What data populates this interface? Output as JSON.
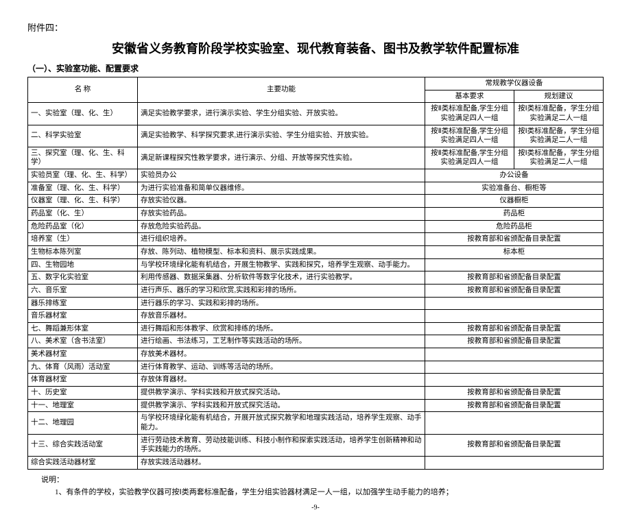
{
  "attachment_label": "附件四：",
  "main_title": "安徽省义务教育阶段学校实验室、现代教育装备、图书及教学软件配置标准",
  "subsection_label": "（一）、实验室功能、配置要求",
  "header": {
    "name": "名    称",
    "function": "主要功能",
    "equipment": "常规教学仪器设备",
    "basic": "基本要求",
    "plan": "规划建议"
  },
  "rows": [
    {
      "name": "一、实验室（理、化、生）",
      "func": "满足实验教学要求，进行演示实验、学生分组实验、开放实验。",
      "basic": "按Ⅱ类标准配备,学生分组实验满足四人一组",
      "plan": "按Ⅰ类标准配备，学生分组实验满足二人一组"
    },
    {
      "name": "二、科学实验室",
      "func": "满足实验教学、科学探究要求,进行演示实验、学生分组实验、开放实验。",
      "basic": "按Ⅱ类标准配备,学生分组实验满足四人一组",
      "plan": "按Ⅰ类标准配备，学生分组实验满足二人一组"
    },
    {
      "name": "三、探究室（理、化、生、科学）",
      "func": "满足新课程探究性教学要求，进行演示、分组、开放等探究性实验。",
      "basic": "按Ⅱ类标准配备,学生分组实验满足四人一组",
      "plan": "按Ⅰ类标准配备，学生分组实验满足二人一组"
    },
    {
      "name": "    实验员室（理、化、生、科学）",
      "func": "实验员办公",
      "basic": "办公设备",
      "plan": "__SPAN__"
    },
    {
      "name": "    准备室（理、化、生、科学）",
      "func": "为进行实验准备和简单仪器维修。",
      "basic": "实验准备台、橱柜等",
      "plan": "__SPAN__"
    },
    {
      "name": "    仪器室（理、化、生、科学）",
      "func": "存放实验仪器。",
      "basic": "仪器橱柜",
      "plan": "__SPAN__"
    },
    {
      "name": "    药品室（化、生）",
      "func": "存放实验药品。",
      "basic": "药品柜",
      "plan": "__SPAN__"
    },
    {
      "name": "    危险药品室（化）",
      "func": "存放危险实验药品。",
      "basic": "危险药品柜",
      "plan": "__SPAN__"
    },
    {
      "name": "    培养室（生）",
      "func": "进行组织培养。",
      "basic": "按教育部和省颁配备目录配置",
      "plan": "__SPAN__"
    },
    {
      "name": "    生物标本陈列室",
      "func": "存放、陈列动、植物模型、标本和资料、展示实践成果。",
      "basic": "标本柜",
      "plan": "__SPAN__"
    },
    {
      "name": "四、生物园地",
      "func": "与学校环境绿化能有机结合，开展生物教学、实践和探究，培养学生观察、动手能力。",
      "basic": "",
      "plan": "__SPAN__"
    },
    {
      "name": "五、数字化实验室",
      "func": "利用传感器、数据采集器、分析软件等数字化技术，进行实验教学。",
      "basic": "按教育部和省颁配备目录配置",
      "plan": "__SPAN__"
    },
    {
      "name": "六、音乐室",
      "func": "进行声乐、器乐的学习和欣赏,实践和彩排的场所。",
      "basic": "按教育部和省颁配备目录配置",
      "plan": "__SPAN__"
    },
    {
      "name": "    器乐排练室",
      "func": "进行器乐的学习、实践和彩排的场所。",
      "basic": "",
      "plan": "__SPAN__"
    },
    {
      "name": "    音乐器材室",
      "func": "存放音乐器材。",
      "basic": "",
      "plan": "__SPAN__"
    },
    {
      "name": "七、舞蹈兼形体室",
      "func": "进行舞蹈和形体教学、欣赏和排练的场所。",
      "basic": "按教育部和省颁配备目录配置",
      "plan": "__SPAN__"
    },
    {
      "name": "八、美术室（含书法室）",
      "func": "进行绘画、书法练习，工艺制作等实践活动的场所。",
      "basic": "按教育部和省颁配备目录配置",
      "plan": "__SPAN__"
    },
    {
      "name": "    美术器材室",
      "func": "存放美术器材。",
      "basic": "",
      "plan": "__SPAN__"
    },
    {
      "name": "九、体育（风雨）活动室",
      "func": "进行体育教学、运动、训练等活动的场所。",
      "basic": "",
      "plan": "__SPAN__"
    },
    {
      "name": "    体育器材室",
      "func": "存放体育器材。",
      "basic": "",
      "plan": "__SPAN__"
    },
    {
      "name": "十、历史室",
      "func": "提供教学演示、学科实践和开放式探究活动。",
      "basic": "按教育部和省颁配备目录配置",
      "plan": "__SPAN__"
    },
    {
      "name": "十一、地理室",
      "func": "提供教学演示、学科实践和开放式探究活动。",
      "basic": "按教育部和省颁配备目录配置",
      "plan": "__SPAN__"
    },
    {
      "name": "十二、地理园",
      "func": "与学校环境绿化能有机结合，开展开放式探究教学和地理实践活动，培养学生观察、动手能力。",
      "basic": "",
      "plan": "__SPAN__"
    },
    {
      "name": "十三、综合实践活动室",
      "func": "进行劳动技术教育、劳动技能训练、科技小制作和探索实践活动，培养学生创新精神和动手实践能力的场所。",
      "basic": "按教育部和省颁配备目录配置",
      "plan": "__SPAN__"
    },
    {
      "name": "    综合实践活动器材室",
      "func": "存放实践活动器材。",
      "basic": "",
      "plan": "__SPAN__"
    }
  ],
  "note_label": "说明：",
  "note_1": "1、有条件的学校，实验教学仪器可按Ⅰ类两套标准配备，学生分组实验器材满足一人一组，以加强学生动手能力的培养；",
  "page_number": "-9-"
}
